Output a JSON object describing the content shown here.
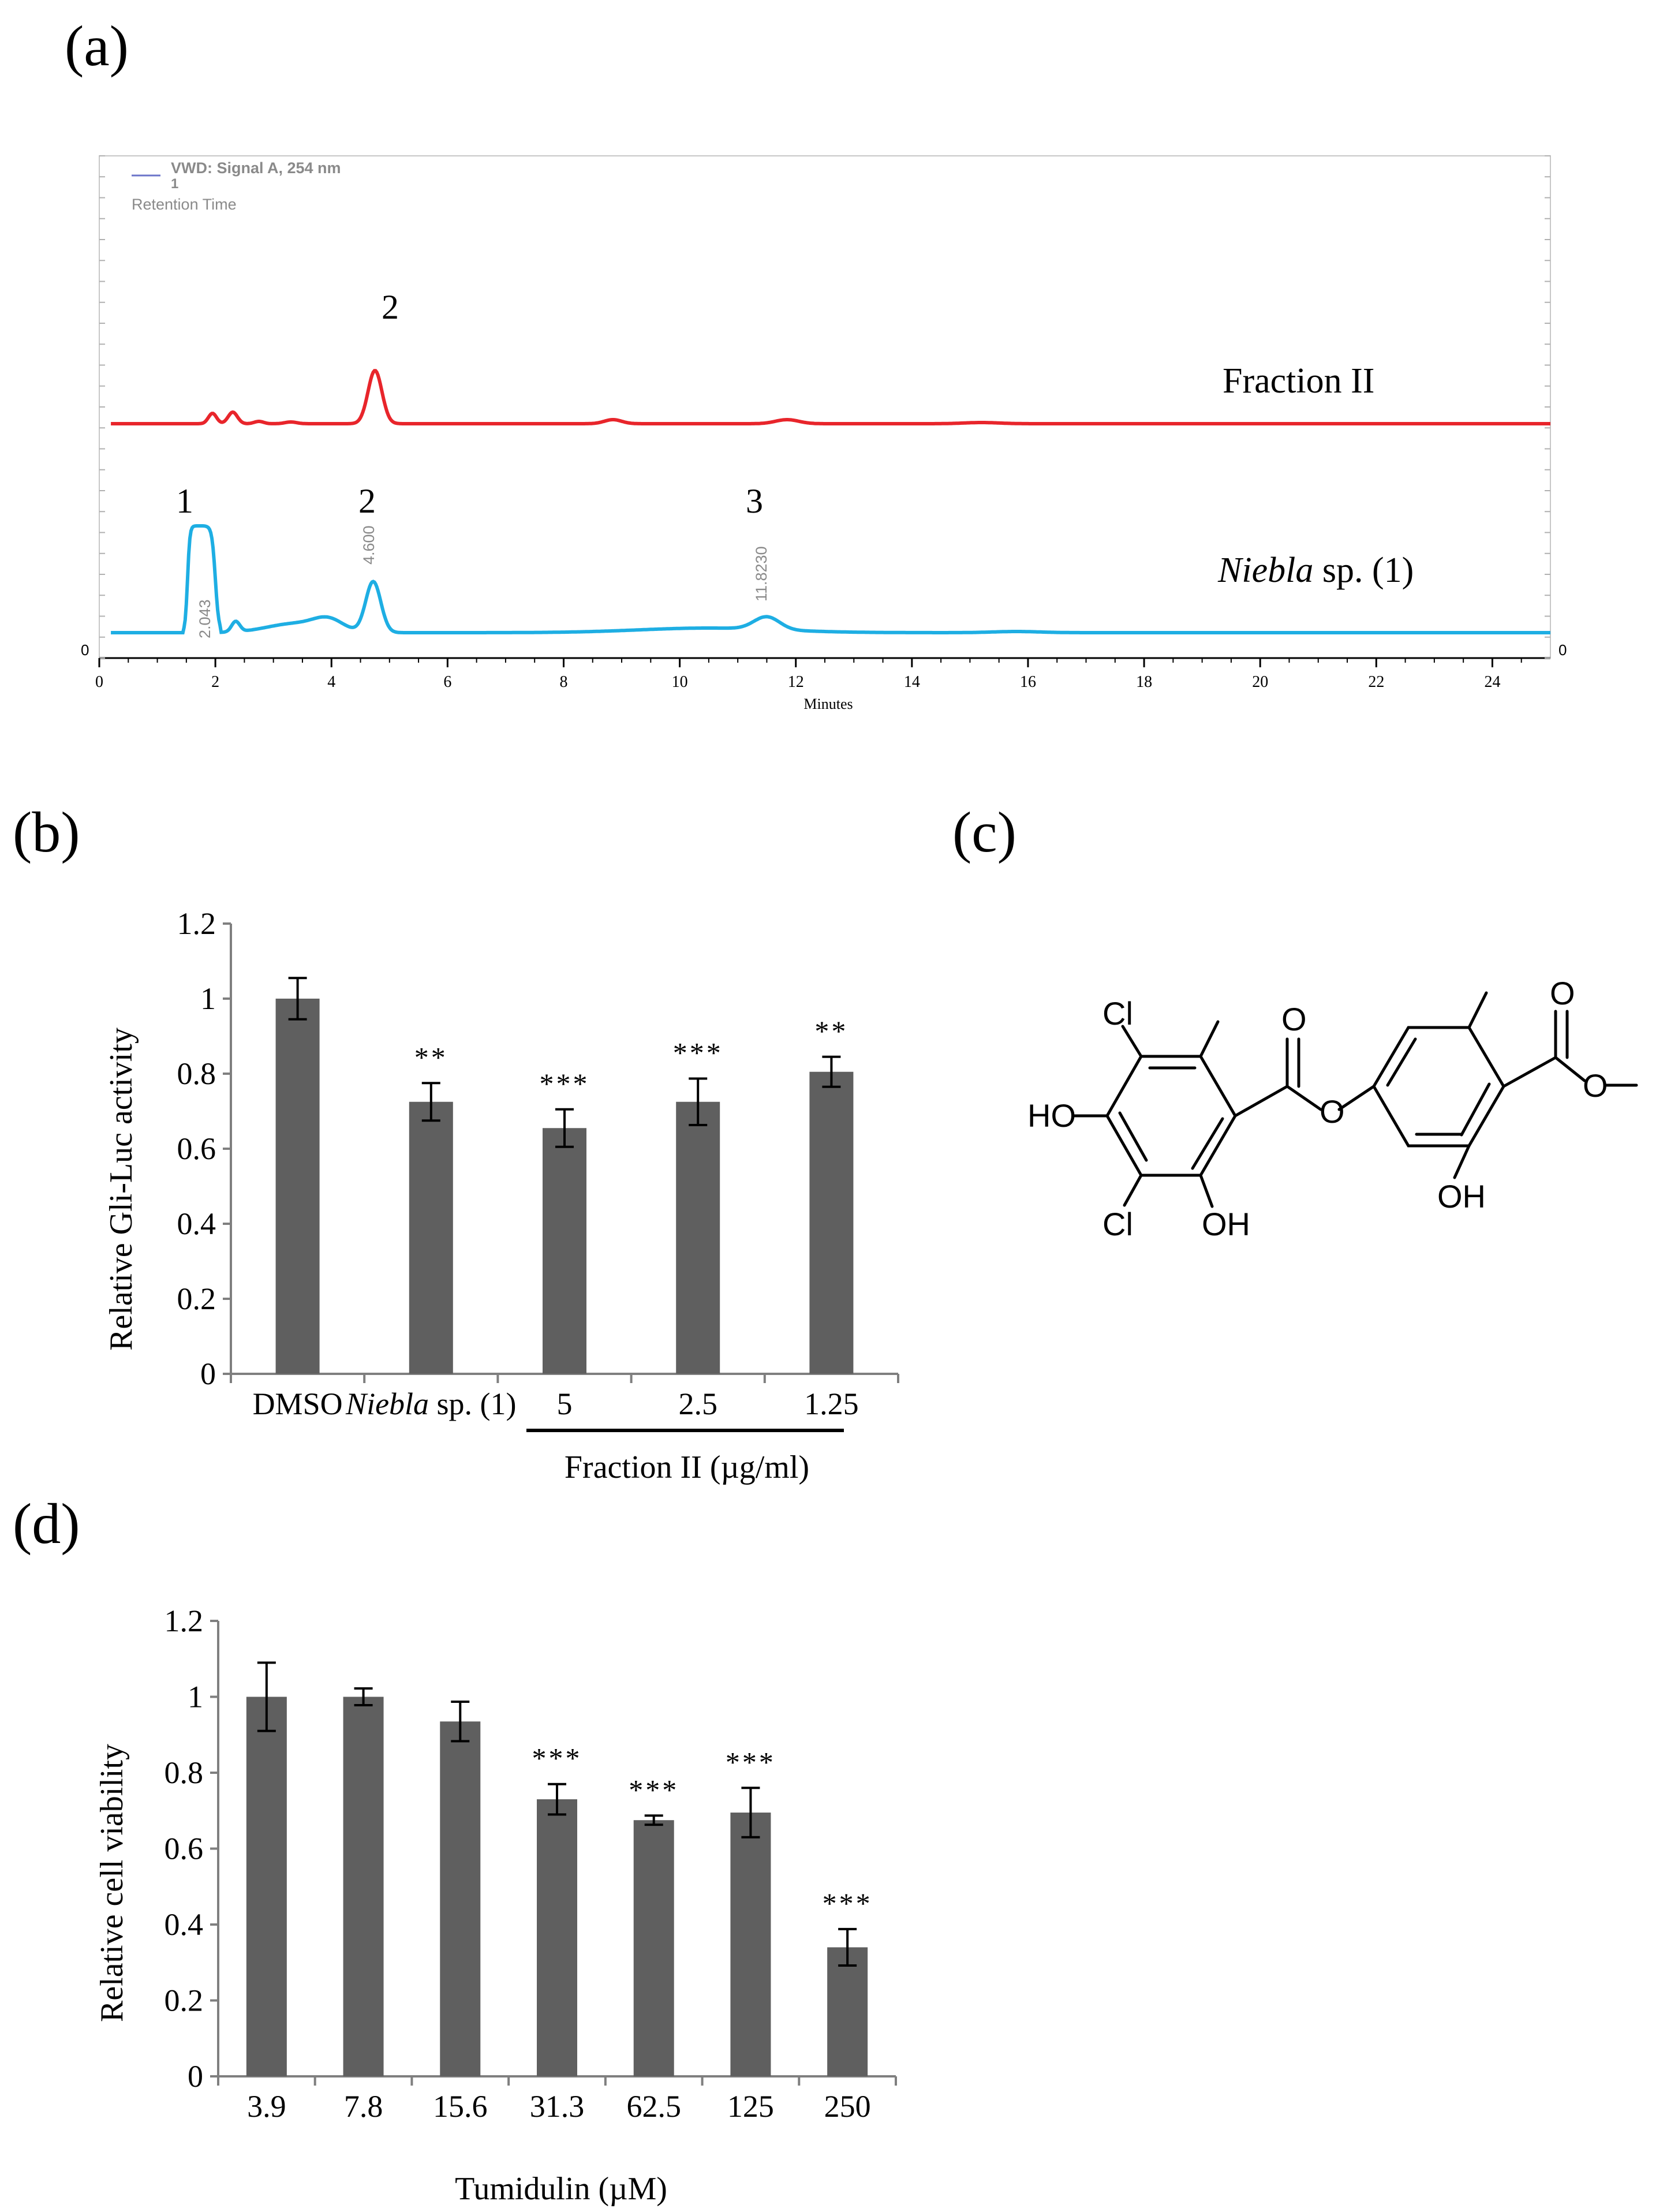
{
  "panels": {
    "a": "(a)",
    "b": "(b)",
    "c": "(c)",
    "d": "(d)"
  },
  "colors": {
    "fraction_trace": "#e8252b",
    "niebla_trace": "#1eaee3",
    "bar": "#5f5f5f",
    "axis": "#7f7f7f",
    "peak_label": "#8a8a8a",
    "legend_line": "#6b74c9"
  },
  "chromatogram": {
    "legend_title": "VWD: Signal A, 254 nm",
    "legend_sub": "1",
    "legend_caption": "Retention Time",
    "xlabel": "Minutes",
    "x_ticks": [
      0,
      2,
      4,
      6,
      8,
      10,
      12,
      14,
      16,
      18,
      20,
      22,
      24
    ],
    "xlim": [
      0,
      25
    ],
    "y_zero_left": "0",
    "y_zero_right": "0",
    "traces": [
      {
        "name": "Fraction II",
        "peak_markers": [
          {
            "label": "2",
            "rt": 4.7
          }
        ]
      },
      {
        "name_italic": "Niebla",
        "name_rest": " sp. (1)",
        "peak_markers": [
          {
            "label": "1",
            "rt": 1.5
          },
          {
            "label": "2",
            "rt": 4.7
          },
          {
            "label": "3",
            "rt": 11.5
          }
        ],
        "retention_labels": [
          "2.043",
          "4.600",
          "11.8230"
        ]
      }
    ]
  },
  "chart_data": [
    {
      "type": "bar",
      "panel": "(b)",
      "ylabel": "Relative Gli-Luc activity",
      "ylim": [
        0,
        1.2
      ],
      "y_ticks": [
        "0",
        "0.2",
        "0.4",
        "0.6",
        "0.8",
        "1",
        "1.2"
      ],
      "categories": [
        "DMSO",
        "Niebla sp. (1)",
        "5",
        "2.5",
        "1.25"
      ],
      "category_italic_part": "Niebla",
      "category_rest_part": " sp. (1)",
      "values": [
        1.0,
        0.725,
        0.655,
        0.725,
        0.805
      ],
      "errors": [
        0.055,
        0.05,
        0.05,
        0.062,
        0.04
      ],
      "significance": [
        "",
        "**",
        "***",
        "***",
        "**"
      ],
      "group_label": "Fraction II",
      "group_unit": "(µg/ml)"
    },
    {
      "type": "bar",
      "panel": "(d)",
      "ylabel": "Relative cell viability",
      "xlabel": "Tumidulin (µM)",
      "ylim": [
        0,
        1.2
      ],
      "y_ticks": [
        "0",
        "0.2",
        "0.4",
        "0.6",
        "0.8",
        "1",
        "1.2"
      ],
      "categories": [
        "3.9",
        "7.8",
        "15.6",
        "31.3",
        "62.5",
        "125",
        "250"
      ],
      "values": [
        1.0,
        1.0,
        0.935,
        0.73,
        0.675,
        0.695,
        0.34
      ],
      "errors": [
        0.09,
        0.022,
        0.052,
        0.04,
        0.012,
        0.065,
        0.048
      ],
      "significance": [
        "",
        "",
        "",
        "***",
        "***",
        "***",
        "***"
      ]
    }
  ],
  "structure": {
    "atoms": {
      "cl_top": "Cl",
      "ho_left": "HO",
      "cl_bottom": "Cl",
      "oh_mid": "OH",
      "o_carbonyl_1": "O",
      "o_ester": "O",
      "o_carbonyl_2": "O",
      "o_methoxy": "O",
      "oh_right": "OH"
    }
  }
}
